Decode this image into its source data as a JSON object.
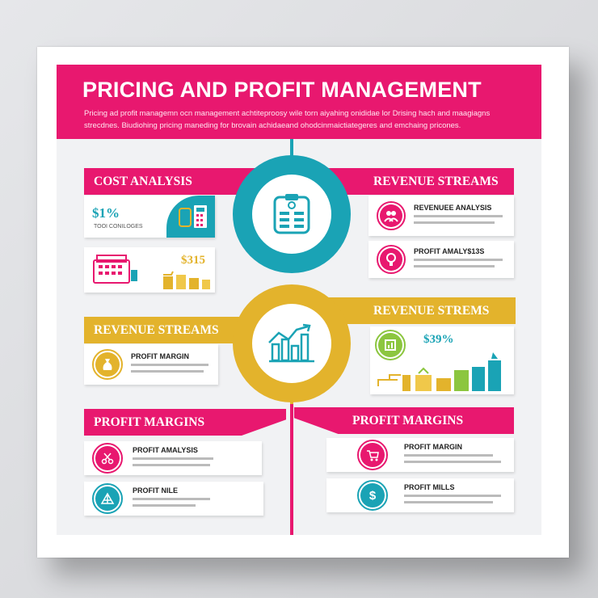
{
  "header": {
    "title": "PRICING AND PROFIT MANAGEMENT",
    "subtitle": "Pricing ad profit managemn ocn management achtiteproosy wile torn aiyahing onididae lor Drising hach and maagiagns strecdnes. Biudiohing pricing maneding for brovain achidaeand ohodcinmaictiategeres and emchaing pricones."
  },
  "colors": {
    "magenta": "#e8186f",
    "teal": "#1aa3b5",
    "gold": "#e3b32c",
    "green": "#8cc63f",
    "background": "#f1f2f4"
  },
  "sections": {
    "cost_analysis": {
      "banner": "COST ANALYSIS",
      "stat_1": "$1%",
      "stat_1_label": "TOOI CONILOGES",
      "stat_2": "$315"
    },
    "revenue_top": {
      "banner": "REVENUE STREAMS",
      "items": [
        {
          "title": "REVENUEE ANALYSIS",
          "icon": "people-icon"
        },
        {
          "title": "PROFIT AMALY$13S",
          "icon": "lightbulb-icon"
        }
      ]
    },
    "revenue_mid_left": {
      "banner": "REVENUE STREAMS",
      "item_title": "PROFIT MARGIN"
    },
    "revenue_mid_right": {
      "banner": "REVENUE STREMS",
      "stat": "$39%"
    },
    "profit_left": {
      "banner": "PROFIT MARGINS",
      "items": [
        {
          "title": "PROFIT AMALYSIS",
          "icon": "scissors-icon"
        },
        {
          "title": "PROFIT NILE",
          "icon": "scale-icon"
        }
      ]
    },
    "profit_right": {
      "banner": "PROFIT MARGINS",
      "items": [
        {
          "title": "PROFIT MARGIN",
          "icon": "cart-icon"
        },
        {
          "title": "PROFIT MILLS",
          "icon": "dollar-gear-icon"
        }
      ]
    }
  },
  "center_icons": {
    "top": "clipboard-icon",
    "middle": "bar-chart-trend-icon"
  }
}
